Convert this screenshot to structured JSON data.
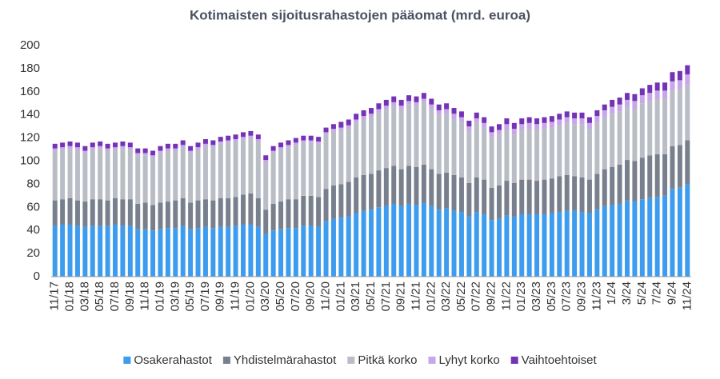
{
  "chart_data": {
    "type": "stacked_bar",
    "title": "Kotimaisten sijoitusrahastojen pääomat (mrd. euroa)",
    "categories": [
      "11/17",
      null,
      "01/18",
      null,
      "03/18",
      null,
      "05/18",
      null,
      "07/18",
      null,
      "09/18",
      null,
      "11/18",
      null,
      "01/19",
      null,
      "03/19",
      null,
      "05/19",
      null,
      "07/19",
      null,
      "09/19",
      null,
      "11/19",
      null,
      "01/20",
      null,
      "03/20",
      null,
      "05/20",
      null,
      "07/20",
      null,
      "09/20",
      null,
      "11/20",
      null,
      "01/21",
      null,
      "03/21",
      null,
      "05/21",
      null,
      "07/21",
      null,
      "09/21",
      null,
      "11/21",
      null,
      "01/22",
      null,
      "03/22",
      null,
      "05/22",
      null,
      "07/22",
      null,
      "09/22",
      null,
      "11/22",
      null,
      "01/23",
      null,
      "03/23",
      null,
      "05/23",
      null,
      "07/23",
      null,
      "09/23",
      null,
      "11/23",
      null,
      "1/24",
      null,
      "3/24",
      null,
      "5/24",
      null,
      "7/24",
      null,
      "9/24",
      null,
      "11/24"
    ],
    "series": [
      {
        "name": "Osakerahastot",
        "color": "#3d9cee",
        "values": [
          44,
          45,
          45,
          44,
          43,
          44,
          44,
          44,
          45,
          44,
          44,
          41,
          41,
          40,
          41,
          42,
          42,
          44,
          41,
          42,
          43,
          42,
          43,
          43,
          44,
          45,
          45,
          43,
          37,
          40,
          41,
          42,
          42,
          44,
          44,
          43,
          48,
          50,
          51,
          52,
          55,
          57,
          58,
          60,
          61,
          63,
          61,
          63,
          62,
          64,
          61,
          58,
          59,
          57,
          56,
          52,
          56,
          54,
          49,
          50,
          53,
          52,
          54,
          54,
          54,
          54,
          55,
          56,
          57,
          57,
          56,
          55,
          58,
          61,
          62,
          63,
          66,
          65,
          67,
          68,
          69,
          70,
          76,
          77,
          80
        ]
      },
      {
        "name": "Yhdistelmärahastot",
        "color": "#78808e",
        "values": [
          22,
          22,
          23,
          22,
          22,
          23,
          23,
          22,
          23,
          23,
          23,
          22,
          23,
          22,
          23,
          23,
          24,
          24,
          23,
          24,
          24,
          24,
          25,
          25,
          25,
          26,
          27,
          25,
          21,
          23,
          24,
          25,
          25,
          26,
          26,
          26,
          28,
          29,
          29,
          30,
          31,
          31,
          31,
          32,
          33,
          33,
          32,
          33,
          33,
          33,
          32,
          31,
          31,
          31,
          30,
          29,
          30,
          30,
          28,
          29,
          30,
          29,
          30,
          30,
          29,
          30,
          30,
          31,
          31,
          30,
          30,
          29,
          31,
          32,
          33,
          34,
          35,
          35,
          36,
          37,
          37,
          36,
          37,
          37,
          38
        ]
      },
      {
        "name": "Pitkä korko",
        "color": "#b9bdc5",
        "values": [
          43,
          43,
          43,
          44,
          42,
          43,
          44,
          43,
          42,
          44,
          43,
          42,
          41,
          41,
          43,
          44,
          43,
          44,
          43,
          44,
          46,
          46,
          47,
          48,
          48,
          48,
          48,
          49,
          41,
          44,
          45,
          45,
          47,
          46,
          46,
          46,
          47,
          47,
          46,
          46,
          47,
          48,
          49,
          50,
          51,
          52,
          52,
          53,
          53,
          54,
          52,
          51,
          51,
          49,
          48,
          45,
          47,
          45,
          44,
          44,
          44,
          42,
          43,
          44,
          44,
          44,
          44,
          44,
          45,
          45,
          46,
          44,
          44,
          45,
          46,
          46,
          46,
          45,
          47,
          47,
          48,
          48,
          48,
          48,
          48
        ]
      },
      {
        "name": "Lyhyt korko",
        "color": "#c8a6ea",
        "values": [
          2,
          2,
          2,
          2,
          2,
          2,
          2,
          2,
          2,
          2,
          2,
          2,
          2,
          2,
          2,
          2,
          2,
          2,
          2,
          2,
          2,
          2,
          2,
          2,
          2,
          2,
          2,
          2,
          2,
          2,
          2,
          2,
          2,
          2,
          2,
          2,
          2,
          2,
          3,
          3,
          3,
          3,
          3,
          3,
          3,
          3,
          3,
          3,
          3,
          3,
          4,
          4,
          4,
          4,
          4,
          4,
          4,
          4,
          4,
          4,
          5,
          5,
          5,
          5,
          5,
          5,
          5,
          5,
          5,
          5,
          5,
          5,
          6,
          6,
          6,
          6,
          6,
          7,
          7,
          7,
          7,
          7,
          8,
          8,
          9
        ]
      },
      {
        "name": "Vaihtoehtoiset",
        "color": "#7432b6",
        "values": [
          4,
          4,
          4,
          4,
          4,
          4,
          4,
          4,
          4,
          4,
          4,
          4,
          4,
          4,
          4,
          4,
          4,
          4,
          4,
          4,
          4,
          4,
          4,
          4,
          4,
          4,
          4,
          4,
          4,
          4,
          4,
          4,
          4,
          4,
          4,
          4,
          4,
          4,
          5,
          5,
          5,
          5,
          5,
          5,
          5,
          5,
          5,
          5,
          5,
          5,
          5,
          5,
          5,
          5,
          5,
          5,
          5,
          5,
          5,
          5,
          5,
          5,
          5,
          5,
          5,
          5,
          5,
          5,
          5,
          5,
          5,
          5,
          5,
          5,
          6,
          6,
          6,
          6,
          6,
          7,
          7,
          7,
          8,
          8,
          8
        ]
      }
    ],
    "ylim": [
      0,
      200
    ],
    "yticks": [
      0,
      20,
      40,
      60,
      80,
      100,
      120,
      140,
      160,
      180,
      200
    ],
    "grid": false,
    "legend": "bottom"
  }
}
